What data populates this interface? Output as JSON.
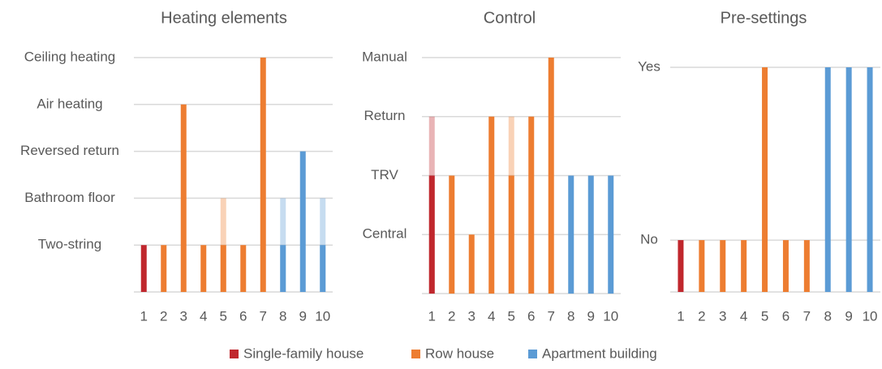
{
  "chart_data": [
    {
      "type": "bar",
      "title": "Heating elements",
      "categories": [
        "1",
        "2",
        "3",
        "4",
        "5",
        "6",
        "7",
        "8",
        "9",
        "10"
      ],
      "ylim": [
        0,
        5
      ],
      "yticks": [
        {
          "value": 1,
          "label": "Two-string"
        },
        {
          "value": 2,
          "label": "Bathroom floor"
        },
        {
          "value": 3,
          "label": "Reversed return"
        },
        {
          "value": 4,
          "label": "Air heating"
        },
        {
          "value": 5,
          "label": "Ceiling heating"
        }
      ],
      "grid": true,
      "series": [
        {
          "name": "Single-family house",
          "color": "#c0272d",
          "values": [
            1,
            null,
            null,
            null,
            null,
            null,
            null,
            null,
            null,
            null
          ],
          "alt_values": [
            null,
            null,
            null,
            null,
            null,
            null,
            null,
            null,
            null,
            null
          ]
        },
        {
          "name": "Row house",
          "color": "#ed7d31",
          "values": [
            null,
            1,
            4,
            1,
            1,
            1,
            5,
            null,
            null,
            null
          ],
          "alt_values": [
            null,
            null,
            null,
            null,
            2,
            null,
            null,
            null,
            null,
            null
          ]
        },
        {
          "name": "Apartment building",
          "color": "#5b9bd5",
          "values": [
            null,
            null,
            null,
            null,
            null,
            null,
            null,
            1,
            3,
            1
          ],
          "alt_values": [
            null,
            null,
            null,
            null,
            null,
            null,
            null,
            2,
            null,
            2
          ]
        }
      ]
    },
    {
      "type": "bar",
      "title": "Control",
      "categories": [
        "1",
        "2",
        "3",
        "4",
        "5",
        "6",
        "7",
        "8",
        "9",
        "10"
      ],
      "ylim": [
        0,
        4
      ],
      "yticks": [
        {
          "value": 1,
          "label": "Central"
        },
        {
          "value": 2,
          "label": "TRV"
        },
        {
          "value": 3,
          "label": "Return"
        },
        {
          "value": 4,
          "label": "Manual"
        }
      ],
      "grid": true,
      "series": [
        {
          "name": "Single-family house",
          "color": "#c0272d",
          "values": [
            2,
            null,
            null,
            null,
            null,
            null,
            null,
            null,
            null,
            null
          ],
          "alt_values": [
            3,
            null,
            null,
            null,
            null,
            null,
            null,
            null,
            null,
            null
          ]
        },
        {
          "name": "Row house",
          "color": "#ed7d31",
          "values": [
            null,
            2,
            1,
            3,
            2,
            3,
            4,
            null,
            null,
            null
          ],
          "alt_values": [
            null,
            null,
            null,
            null,
            3,
            null,
            null,
            null,
            null,
            null
          ]
        },
        {
          "name": "Apartment building",
          "color": "#5b9bd5",
          "values": [
            null,
            null,
            null,
            null,
            null,
            null,
            null,
            2,
            2,
            2
          ],
          "alt_values": [
            null,
            null,
            null,
            null,
            null,
            null,
            null,
            null,
            null,
            null
          ]
        }
      ]
    },
    {
      "type": "bar",
      "title": "Pre-settings",
      "categories": [
        "1",
        "2",
        "3",
        "4",
        "5",
        "6",
        "7",
        "8",
        "9",
        "10"
      ],
      "ylim": [
        -0.3,
        1
      ],
      "yticks": [
        {
          "value": 0,
          "label": "No"
        },
        {
          "value": 1,
          "label": "Yes"
        }
      ],
      "grid": true,
      "series": [
        {
          "name": "Single-family house",
          "color": "#c0272d",
          "values": [
            0,
            null,
            null,
            null,
            null,
            null,
            null,
            null,
            null,
            null
          ],
          "alt_values": [
            null,
            null,
            null,
            null,
            null,
            null,
            null,
            null,
            null,
            null
          ]
        },
        {
          "name": "Row house",
          "color": "#ed7d31",
          "values": [
            null,
            0,
            0,
            0,
            1,
            0,
            0,
            null,
            null,
            null
          ],
          "alt_values": [
            null,
            null,
            null,
            null,
            null,
            null,
            null,
            null,
            null,
            null
          ]
        },
        {
          "name": "Apartment building",
          "color": "#5b9bd5",
          "values": [
            null,
            null,
            null,
            null,
            null,
            null,
            null,
            1,
            1,
            1
          ],
          "alt_values": [
            null,
            null,
            null,
            null,
            null,
            null,
            null,
            null,
            null,
            null
          ]
        }
      ]
    }
  ]
}
